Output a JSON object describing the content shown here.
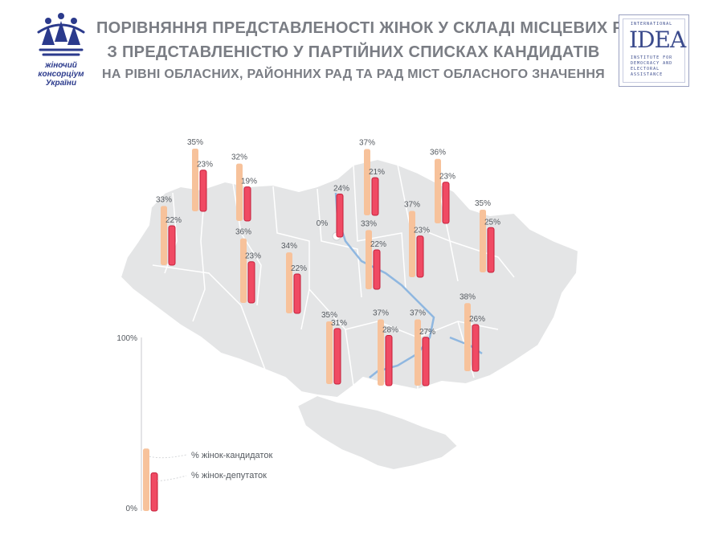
{
  "header": {
    "title_line1": "ПОРІВНЯННЯ ПРЕДСТАВЛЕНОСТІ ЖІНОК У СКЛАДІ МІСЦЕВИХ РАД",
    "title_line2": "З ПРЕДСТАВЛЕНІСТЮ У ПАРТІЙНИХ СПИСКАХ КАНДИДАТІВ",
    "subtitle": "НА РІВНІ ОБЛАСНИХ, РАЙОННИХ РАД ТА РАД МІСТ ОБЛАСНОГО ЗНАЧЕННЯ"
  },
  "logos": {
    "left_line1": "жіночий",
    "left_line2": "консорціум",
    "left_line3": "України",
    "right_top": "INTERNATIONAL",
    "right_main": "IDEA",
    "right_line1": "INSTITUTE FOR",
    "right_line2": "DEMOCRACY AND",
    "right_line3": "ELECTORAL",
    "right_line4": "ASSISTANCE"
  },
  "colors": {
    "candidates": "#f7c29b",
    "deputies": "#f04a63",
    "deputies_stroke": "#c41f3a",
    "map_fill": "#e4e5e6",
    "map_border": "#ffffff",
    "rivers": "#8fb7e0",
    "title": "#7a7d84"
  },
  "chart_data": {
    "type": "bar",
    "series": [
      {
        "name": "% жінок-кандидаток",
        "color": "#f7c29b"
      },
      {
        "name": "% жінок-депутаток",
        "color": "#f04a63"
      }
    ],
    "ylim": [
      0,
      100
    ],
    "scale_labels": {
      "top": "100%",
      "bottom": "0%"
    },
    "regions": [
      {
        "candidates": 33,
        "deputies": 22,
        "candidates_label": "33%",
        "deputies_label": "22%"
      },
      {
        "candidates": 35,
        "deputies": 23,
        "candidates_label": "35%",
        "deputies_label": "23%"
      },
      {
        "candidates": 32,
        "deputies": 19,
        "candidates_label": "32%",
        "deputies_label": "19%"
      },
      {
        "candidates": 36,
        "deputies": 23,
        "candidates_label": "36%",
        "deputies_label": "23%"
      },
      {
        "candidates": 34,
        "deputies": 22,
        "candidates_label": "34%",
        "deputies_label": "22%"
      },
      {
        "candidates": 0,
        "deputies": 24,
        "candidates_label": "0%",
        "deputies_label": "24%"
      },
      {
        "candidates": 37,
        "deputies": 21,
        "candidates_label": "37%",
        "deputies_label": "21%"
      },
      {
        "candidates": 33,
        "deputies": 22,
        "candidates_label": "33%",
        "deputies_label": "22%"
      },
      {
        "candidates": 36,
        "deputies": 23,
        "candidates_label": "36%",
        "deputies_label": "23%"
      },
      {
        "candidates": 37,
        "deputies": 23,
        "candidates_label": "37%",
        "deputies_label": "23%"
      },
      {
        "candidates": 35,
        "deputies": 25,
        "candidates_label": "35%",
        "deputies_label": "25%"
      },
      {
        "candidates": 35,
        "deputies": 31,
        "candidates_label": "35%",
        "deputies_label": "31%"
      },
      {
        "candidates": 37,
        "deputies": 28,
        "candidates_label": "37%",
        "deputies_label": "28%"
      },
      {
        "candidates": 37,
        "deputies": 27,
        "candidates_label": "37%",
        "deputies_label": "27%"
      },
      {
        "candidates": 38,
        "deputies": 26,
        "candidates_label": "38%",
        "deputies_label": "26%"
      }
    ]
  }
}
